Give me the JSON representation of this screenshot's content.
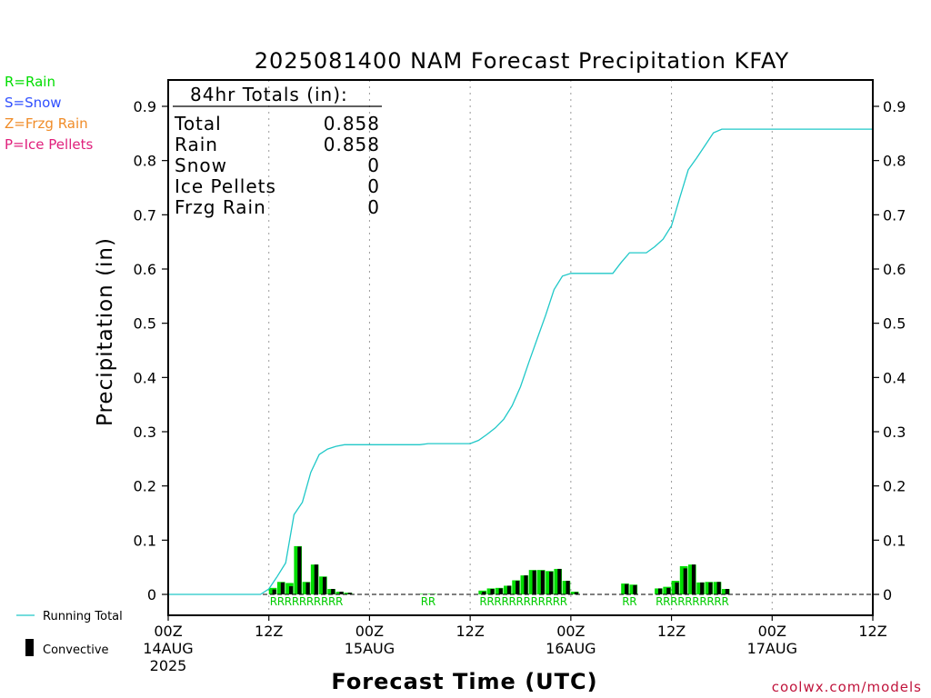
{
  "title": "2025081400 NAM Forecast Precipitation KFAY",
  "source": "coolwx.com/models",
  "ptype_legend": [
    {
      "text": "R=Rain",
      "color": "#00dd00"
    },
    {
      "text": "S=Snow",
      "color": "#3050ff"
    },
    {
      "text": "Z=Frzg Rain",
      "color": "#f08c28"
    },
    {
      "text": "P=Ice Pellets",
      "color": "#e0207c"
    }
  ],
  "totals": {
    "header": "84hr Totals (in):",
    "rows": [
      {
        "label": "Total",
        "value": "0.858"
      },
      {
        "label": "Rain",
        "value": "0.858"
      },
      {
        "label": "Snow",
        "value": "0"
      },
      {
        "label": "Ice Pellets",
        "value": "0"
      },
      {
        "label": "Frzg Rain",
        "value": "0"
      }
    ]
  },
  "legend": {
    "running_total": "Running Total",
    "convective": "Convective"
  },
  "colors": {
    "running_total": "#20c8c8",
    "precip_bar": "#00dd00",
    "convective_bar": "#000000",
    "rain_marker": "#00cc00"
  },
  "chart_data": {
    "type": "bar",
    "title": "2025081400 NAM Forecast Precipitation KFAY",
    "xlabel": "Forecast Time (UTC)",
    "ylabel": "Precipitation (in)",
    "ylim": [
      0,
      0.9
    ],
    "xlim_hours": [
      0,
      84
    ],
    "y_ticks": [
      "0",
      "0.1",
      "0.2",
      "0.3",
      "0.4",
      "0.5",
      "0.6",
      "0.7",
      "0.8",
      "0.9"
    ],
    "x_ticks": [
      {
        "hour": 0,
        "label": "00Z",
        "date": "14AUG",
        "year": "2025"
      },
      {
        "hour": 12,
        "label": "12Z"
      },
      {
        "hour": 24,
        "label": "00Z",
        "date": "15AUG"
      },
      {
        "hour": 36,
        "label": "12Z"
      },
      {
        "hour": 48,
        "label": "00Z",
        "date": "16AUG"
      },
      {
        "hour": 60,
        "label": "12Z"
      },
      {
        "hour": 72,
        "label": "00Z",
        "date": "17AUG"
      },
      {
        "hour": 84,
        "label": "12Z"
      }
    ],
    "grid": "dotted vertical at 12Z and 00Z",
    "bar_interval_hours": 1,
    "series": [
      {
        "name": "Running Total",
        "type": "line",
        "points": [
          [
            0,
            0
          ],
          [
            11,
            0
          ],
          [
            12,
            0.01
          ],
          [
            13,
            0.033
          ],
          [
            14,
            0.058
          ],
          [
            15,
            0.147
          ],
          [
            16,
            0.17
          ],
          [
            17,
            0.225
          ],
          [
            18,
            0.258
          ],
          [
            19,
            0.268
          ],
          [
            20,
            0.273
          ],
          [
            21,
            0.276
          ],
          [
            22,
            0.276
          ],
          [
            30,
            0.276
          ],
          [
            31,
            0.278
          ],
          [
            36,
            0.278
          ],
          [
            37,
            0.284
          ],
          [
            38,
            0.295
          ],
          [
            39,
            0.307
          ],
          [
            40,
            0.323
          ],
          [
            41,
            0.348
          ],
          [
            42,
            0.383
          ],
          [
            43,
            0.428
          ],
          [
            44,
            0.472
          ],
          [
            45,
            0.515
          ],
          [
            46,
            0.562
          ],
          [
            47,
            0.587
          ],
          [
            48,
            0.592
          ],
          [
            53,
            0.592
          ],
          [
            54,
            0.612
          ],
          [
            55,
            0.63
          ],
          [
            57,
            0.63
          ],
          [
            58,
            0.641
          ],
          [
            59,
            0.655
          ],
          [
            60,
            0.68
          ],
          [
            61,
            0.732
          ],
          [
            62,
            0.783
          ],
          [
            63,
            0.805
          ],
          [
            64,
            0.828
          ],
          [
            65,
            0.851
          ],
          [
            66,
            0.858
          ],
          [
            84,
            0.858
          ]
        ]
      },
      {
        "name": "Total",
        "type": "bar",
        "bars": [
          {
            "hour": 12,
            "value": 0.012
          },
          {
            "hour": 13,
            "value": 0.023
          },
          {
            "hour": 14,
            "value": 0.021
          },
          {
            "hour": 15,
            "value": 0.089
          },
          {
            "hour": 16,
            "value": 0.023
          },
          {
            "hour": 17,
            "value": 0.055
          },
          {
            "hour": 18,
            "value": 0.033
          },
          {
            "hour": 19,
            "value": 0.01
          },
          {
            "hour": 20,
            "value": 0.005
          },
          {
            "hour": 21,
            "value": 0.003
          },
          {
            "hour": 30,
            "value": 0.001
          },
          {
            "hour": 31,
            "value": 0.001
          },
          {
            "hour": 37,
            "value": 0.007
          },
          {
            "hour": 38,
            "value": 0.011
          },
          {
            "hour": 39,
            "value": 0.012
          },
          {
            "hour": 40,
            "value": 0.016
          },
          {
            "hour": 41,
            "value": 0.026
          },
          {
            "hour": 42,
            "value": 0.035
          },
          {
            "hour": 43,
            "value": 0.045
          },
          {
            "hour": 44,
            "value": 0.045
          },
          {
            "hour": 45,
            "value": 0.043
          },
          {
            "hour": 46,
            "value": 0.047
          },
          {
            "hour": 47,
            "value": 0.025
          },
          {
            "hour": 48,
            "value": 0.005
          },
          {
            "hour": 54,
            "value": 0.02
          },
          {
            "hour": 55,
            "value": 0.018
          },
          {
            "hour": 58,
            "value": 0.011
          },
          {
            "hour": 59,
            "value": 0.014
          },
          {
            "hour": 60,
            "value": 0.025
          },
          {
            "hour": 61,
            "value": 0.052
          },
          {
            "hour": 62,
            "value": 0.055
          },
          {
            "hour": 63,
            "value": 0.022
          },
          {
            "hour": 64,
            "value": 0.023
          },
          {
            "hour": 65,
            "value": 0.023
          },
          {
            "hour": 66,
            "value": 0.01
          }
        ]
      },
      {
        "name": "Convective",
        "type": "bar",
        "bars": [
          {
            "hour": 12,
            "value": 0.009
          },
          {
            "hour": 13,
            "value": 0.022
          },
          {
            "hour": 14,
            "value": 0.015
          },
          {
            "hour": 15,
            "value": 0.088
          },
          {
            "hour": 16,
            "value": 0.022
          },
          {
            "hour": 17,
            "value": 0.055
          },
          {
            "hour": 18,
            "value": 0.032
          },
          {
            "hour": 19,
            "value": 0.01
          },
          {
            "hour": 20,
            "value": 0.005
          },
          {
            "hour": 21,
            "value": 0.003
          },
          {
            "hour": 37,
            "value": 0.005
          },
          {
            "hour": 38,
            "value": 0.01
          },
          {
            "hour": 39,
            "value": 0.011
          },
          {
            "hour": 40,
            "value": 0.016
          },
          {
            "hour": 41,
            "value": 0.025
          },
          {
            "hour": 42,
            "value": 0.035
          },
          {
            "hour": 43,
            "value": 0.044
          },
          {
            "hour": 44,
            "value": 0.044
          },
          {
            "hour": 45,
            "value": 0.042
          },
          {
            "hour": 46,
            "value": 0.047
          },
          {
            "hour": 47,
            "value": 0.025
          },
          {
            "hour": 48,
            "value": 0.004
          },
          {
            "hour": 54,
            "value": 0.019
          },
          {
            "hour": 55,
            "value": 0.017
          },
          {
            "hour": 58,
            "value": 0.011
          },
          {
            "hour": 59,
            "value": 0.012
          },
          {
            "hour": 60,
            "value": 0.022
          },
          {
            "hour": 61,
            "value": 0.048
          },
          {
            "hour": 62,
            "value": 0.055
          },
          {
            "hour": 63,
            "value": 0.022
          },
          {
            "hour": 64,
            "value": 0.022
          },
          {
            "hour": 65,
            "value": 0.023
          },
          {
            "hour": 66,
            "value": 0.01
          }
        ]
      }
    ],
    "ptype_markers": [
      {
        "text": "RRRRRRRRRR",
        "start_hour": 12
      },
      {
        "text": "RR",
        "start_hour": 30
      },
      {
        "text": "RRRRRRRRRRRR",
        "start_hour": 37
      },
      {
        "text": "RR",
        "start_hour": 54
      },
      {
        "text": "RRRRRRRRRR",
        "start_hour": 58
      }
    ]
  }
}
